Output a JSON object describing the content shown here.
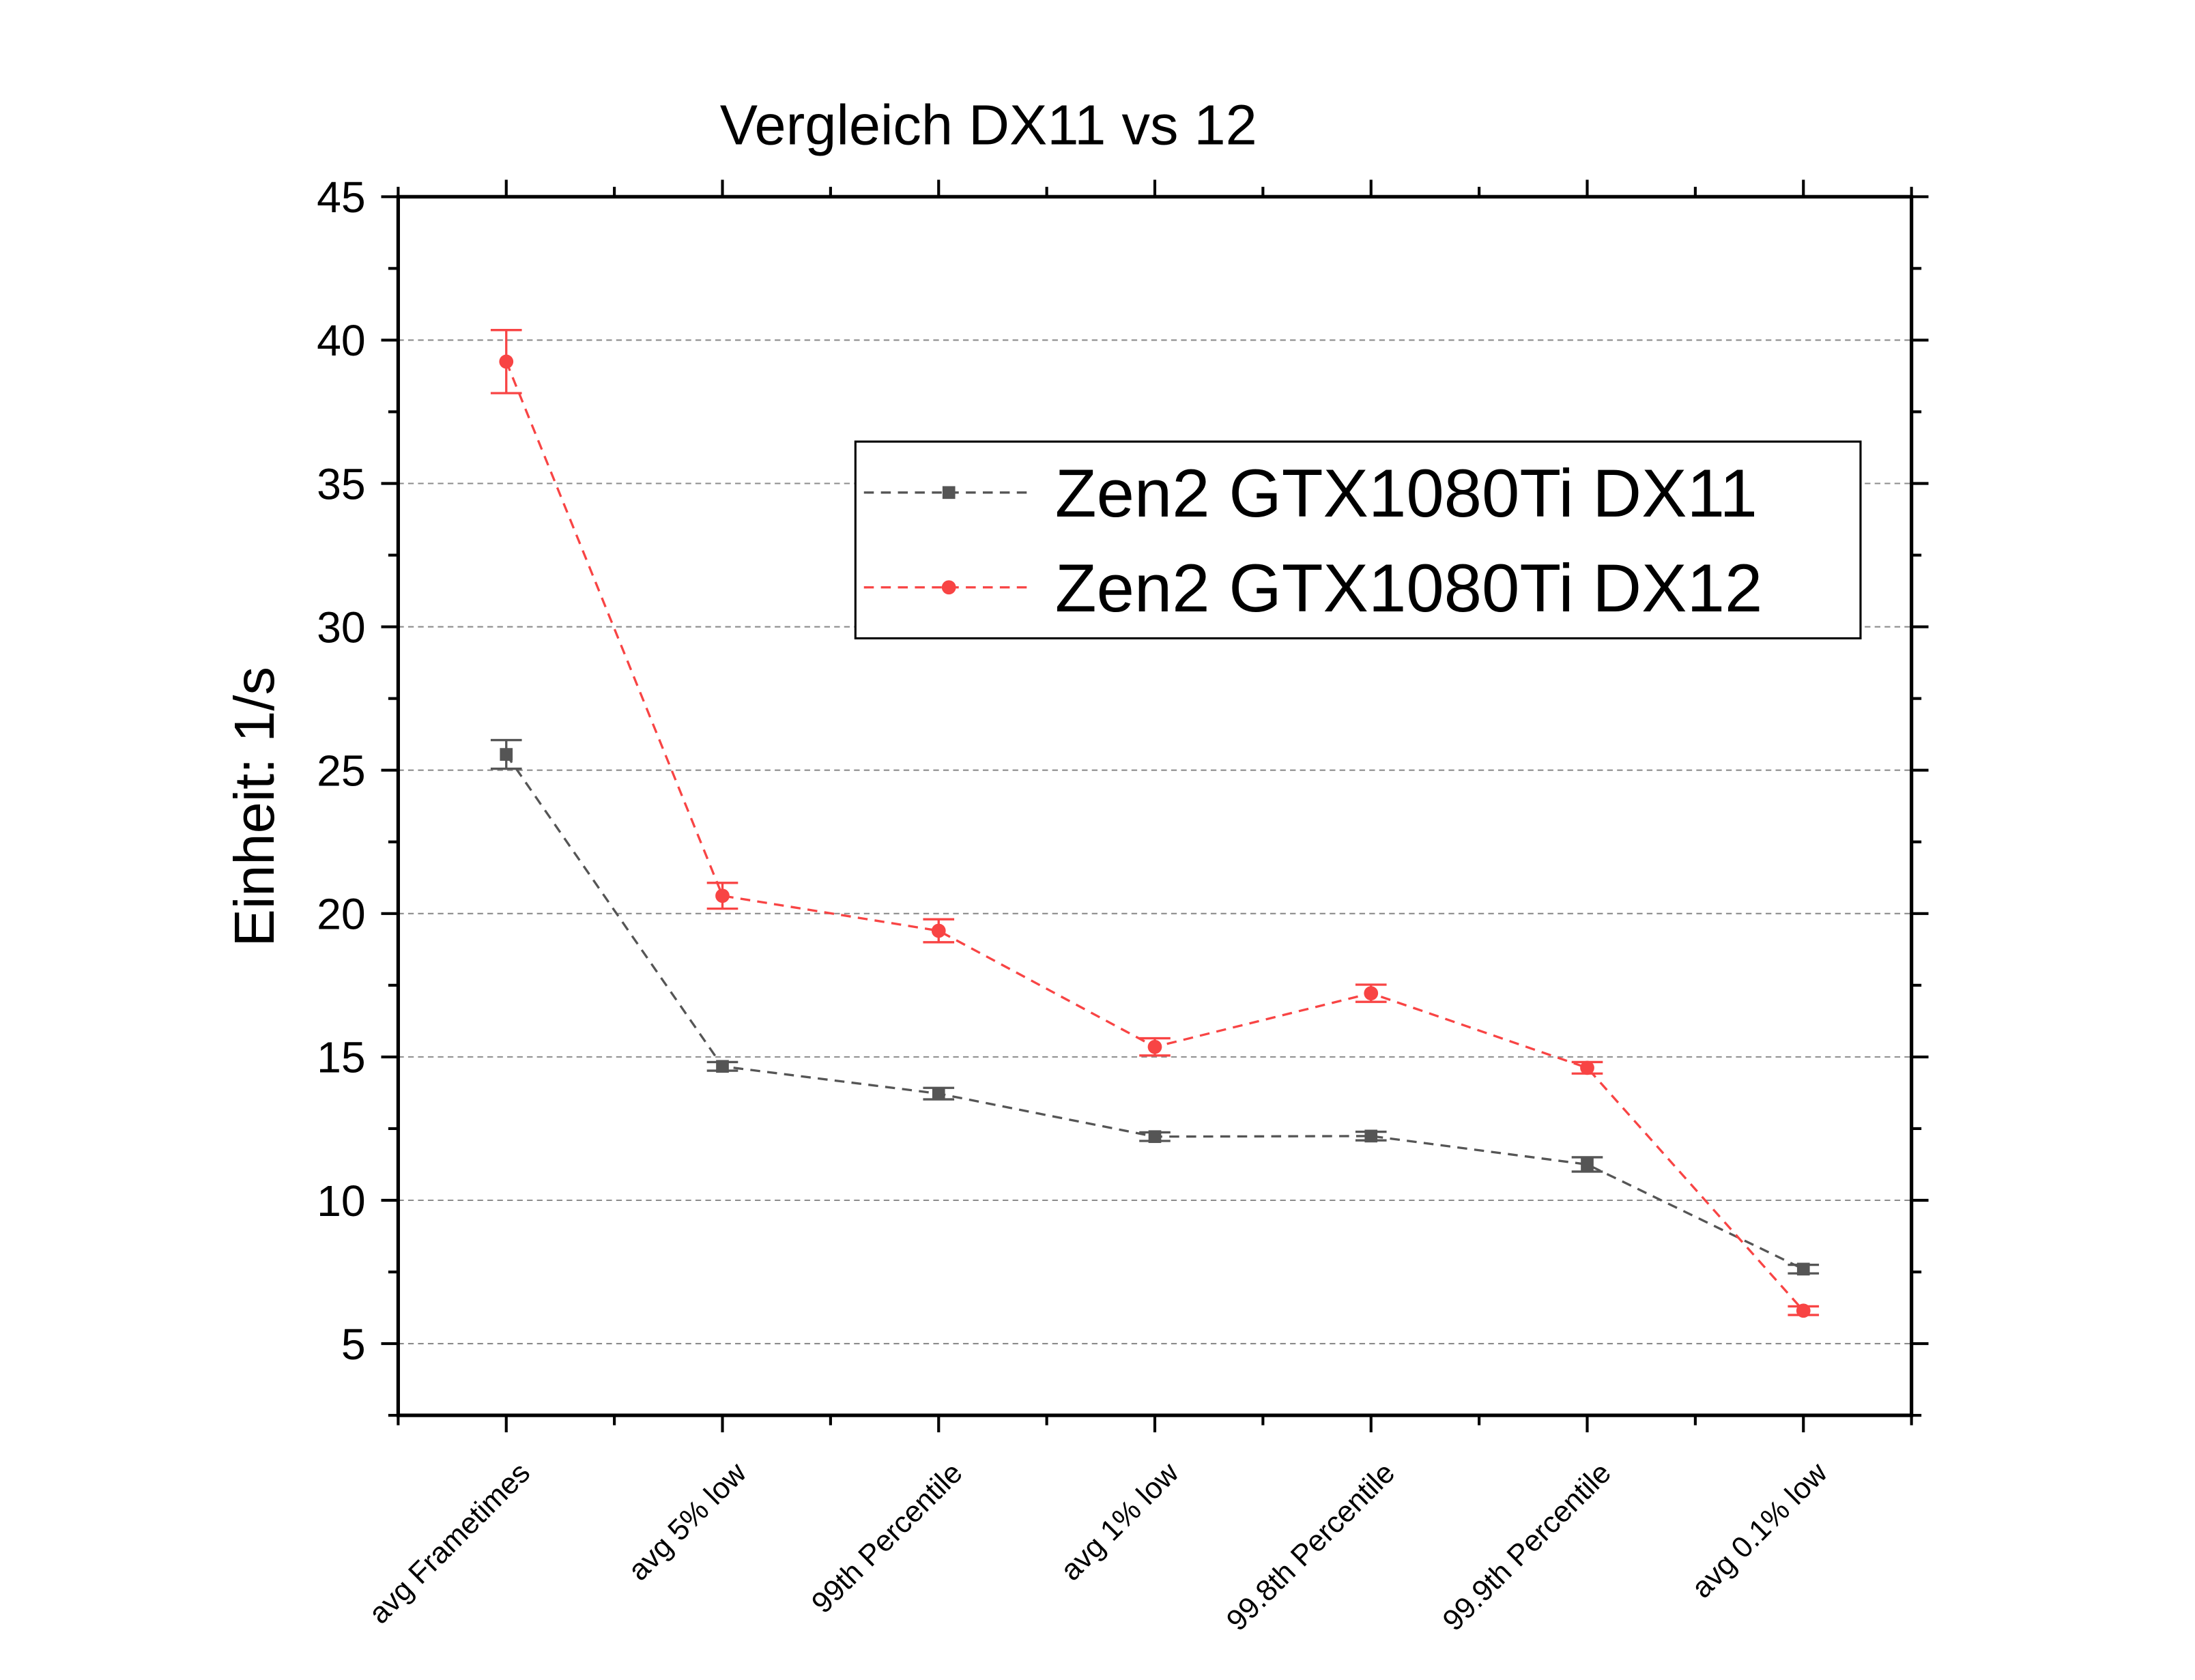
{
  "chart_data": {
    "type": "line",
    "title": "Vergleich DX11 vs 12",
    "xlabel": "",
    "ylabel": "Einheit: 1/s",
    "ylim": [
      2.5,
      45
    ],
    "yticks": [
      5,
      10,
      15,
      20,
      25,
      30,
      35,
      40,
      45
    ],
    "grid": true,
    "legend_position": "upper-right",
    "categories": [
      "avg Frametimes",
      "avg 5% low",
      "99th Percentile",
      "avg 1% low",
      "99.8th Percentile",
      "99.9th Percentile",
      "avg 0.1% low"
    ],
    "series": [
      {
        "name": "Zen2 GTX1080Ti DX11",
        "color": "#555555",
        "marker": "square",
        "line": "dashed",
        "values": [
          25.55,
          14.67,
          13.72,
          12.22,
          12.24,
          11.25,
          7.6
        ],
        "errors": [
          0.5,
          0.15,
          0.2,
          0.15,
          0.15,
          0.25,
          0.15
        ]
      },
      {
        "name": "Zen2 GTX1080Ti DX12",
        "color": "#f84444",
        "marker": "circle",
        "line": "dashed",
        "values": [
          39.25,
          20.62,
          19.4,
          15.35,
          17.22,
          14.62,
          6.15
        ],
        "errors": [
          1.1,
          0.45,
          0.4,
          0.3,
          0.3,
          0.2,
          0.15
        ]
      }
    ]
  }
}
